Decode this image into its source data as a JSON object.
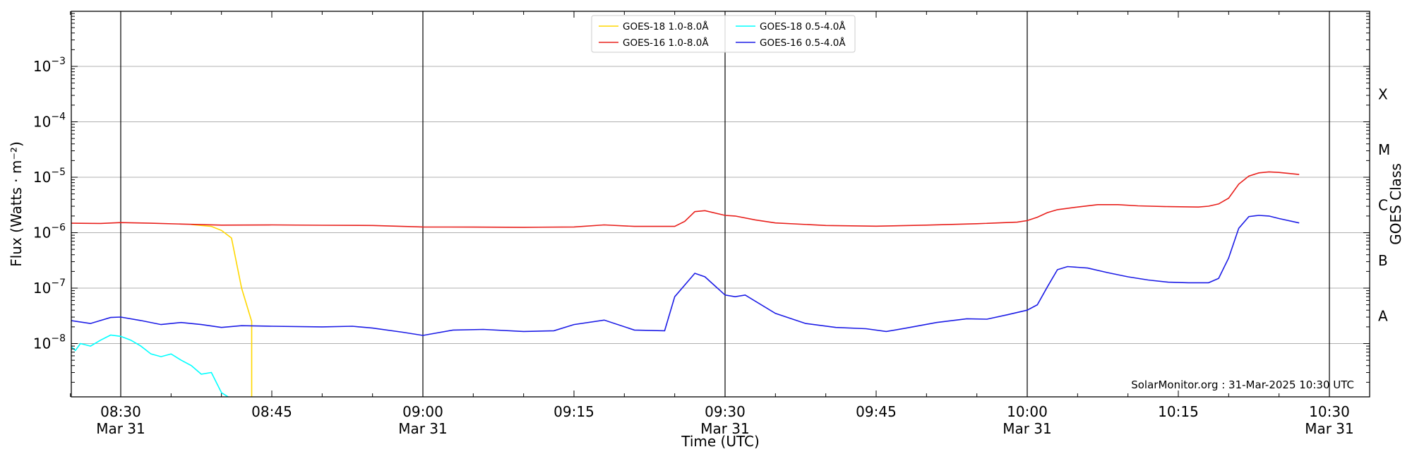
{
  "chart_data": {
    "type": "line",
    "title": "",
    "xlabel": "Time (UTC)",
    "ylabel": "Flux (Watts · m⁻²)",
    "y2label": "GOES Class",
    "yscale": "log",
    "ylim": [
      1e-09,
      0.01
    ],
    "xlim": [
      "08:25",
      "10:33"
    ],
    "grid": "horizontal at decades",
    "legend_position": "upper center",
    "credit": "SolarMonitor.org : 31-Mar-2025 10:30 UTC",
    "y_ticks": [
      {
        "value": 1e-08,
        "base": "10",
        "exp": "−8"
      },
      {
        "value": 1e-07,
        "base": "10",
        "exp": "−7"
      },
      {
        "value": 1e-06,
        "base": "10",
        "exp": "−6"
      },
      {
        "value": 1e-05,
        "base": "10",
        "exp": "−5"
      },
      {
        "value": 0.0001,
        "base": "10",
        "exp": "−4"
      },
      {
        "value": 0.001,
        "base": "10",
        "exp": "−3"
      }
    ],
    "x_ticks": [
      {
        "time": "08:30",
        "label": "08:30",
        "sublabel": "Mar 31"
      },
      {
        "time": "08:45",
        "label": "08:45",
        "sublabel": ""
      },
      {
        "time": "09:00",
        "label": "09:00",
        "sublabel": "Mar 31"
      },
      {
        "time": "09:15",
        "label": "09:15",
        "sublabel": ""
      },
      {
        "time": "09:30",
        "label": "09:30",
        "sublabel": "Mar 31"
      },
      {
        "time": "09:45",
        "label": "09:45",
        "sublabel": ""
      },
      {
        "time": "10:00",
        "label": "10:00",
        "sublabel": "Mar 31"
      },
      {
        "time": "10:15",
        "label": "10:15",
        "sublabel": ""
      },
      {
        "time": "10:30",
        "label": "10:30",
        "sublabel": "Mar 31"
      }
    ],
    "vertical_lines": [
      "08:30",
      "09:00",
      "09:30",
      "10:00",
      "10:30"
    ],
    "goes_classes": [
      {
        "label": "A",
        "value": 3.16e-08
      },
      {
        "label": "B",
        "value": 3.16e-07
      },
      {
        "label": "C",
        "value": 3.16e-06
      },
      {
        "label": "M",
        "value": 3.16e-05
      },
      {
        "label": "X",
        "value": 0.000316
      }
    ],
    "series": [
      {
        "name": "GOES-18 1.0-8.0Å",
        "color": "#FFD700",
        "points": [
          [
            "08:37",
            1.4e-06
          ],
          [
            "08:39",
            1.3e-06
          ],
          [
            "08:40",
            1.1e-06
          ],
          [
            "08:41",
            8e-07
          ],
          [
            "08:42",
            1e-07
          ],
          [
            "08:43",
            2.5e-08
          ],
          [
            "08:43",
            1e-09
          ]
        ]
      },
      {
        "name": "GOES-16 1.0-8.0Å",
        "color": "#e8201c",
        "points": [
          [
            "08:25",
            1.48e-06
          ],
          [
            "08:28",
            1.47e-06
          ],
          [
            "08:30",
            1.52e-06
          ],
          [
            "08:33",
            1.48e-06
          ],
          [
            "08:36",
            1.43e-06
          ],
          [
            "08:40",
            1.37e-06
          ],
          [
            "08:45",
            1.38e-06
          ],
          [
            "08:50",
            1.36e-06
          ],
          [
            "08:55",
            1.35e-06
          ],
          [
            "09:00",
            1.27e-06
          ],
          [
            "09:05",
            1.26e-06
          ],
          [
            "09:10",
            1.25e-06
          ],
          [
            "09:15",
            1.27e-06
          ],
          [
            "09:18",
            1.38e-06
          ],
          [
            "09:21",
            1.3e-06
          ],
          [
            "09:25",
            1.3e-06
          ],
          [
            "09:26",
            1.6e-06
          ],
          [
            "09:27",
            2.4e-06
          ],
          [
            "09:28",
            2.5e-06
          ],
          [
            "09:30",
            2.05e-06
          ],
          [
            "09:31",
            2e-06
          ],
          [
            "09:33",
            1.7e-06
          ],
          [
            "09:35",
            1.5e-06
          ],
          [
            "09:40",
            1.35e-06
          ],
          [
            "09:45",
            1.31e-06
          ],
          [
            "09:50",
            1.37e-06
          ],
          [
            "09:55",
            1.45e-06
          ],
          [
            "09:59",
            1.55e-06
          ],
          [
            "10:00",
            1.65e-06
          ],
          [
            "10:01",
            1.9e-06
          ],
          [
            "10:02",
            2.3e-06
          ],
          [
            "10:03",
            2.6e-06
          ],
          [
            "10:05",
            2.9e-06
          ],
          [
            "10:07",
            3.2e-06
          ],
          [
            "10:09",
            3.2e-06
          ],
          [
            "10:11",
            3.05e-06
          ],
          [
            "10:14",
            2.95e-06
          ],
          [
            "10:17",
            2.9e-06
          ],
          [
            "10:18",
            3e-06
          ],
          [
            "10:19",
            3.3e-06
          ],
          [
            "10:20",
            4.2e-06
          ],
          [
            "10:21",
            7.5e-06
          ],
          [
            "10:22",
            1.05e-05
          ],
          [
            "10:23",
            1.2e-05
          ],
          [
            "10:24",
            1.25e-05
          ],
          [
            "10:25",
            1.22e-05
          ],
          [
            "10:27",
            1.12e-05
          ]
        ]
      },
      {
        "name": "GOES-18 0.5-4.0Å",
        "color": "#00FFFF",
        "points": [
          [
            "08:25",
            9e-09
          ],
          [
            "08:25.5",
            7.5e-09
          ],
          [
            "08:26",
            1e-08
          ],
          [
            "08:27",
            9e-09
          ],
          [
            "08:28",
            1.15e-08
          ],
          [
            "08:29",
            1.42e-08
          ],
          [
            "08:30",
            1.35e-08
          ],
          [
            "08:31",
            1.15e-08
          ],
          [
            "08:32",
            9e-09
          ],
          [
            "08:33",
            6.5e-09
          ],
          [
            "08:34",
            5.8e-09
          ],
          [
            "08:35",
            6.5e-09
          ],
          [
            "08:36",
            5e-09
          ],
          [
            "08:37",
            4e-09
          ],
          [
            "08:38",
            2.8e-09
          ],
          [
            "08:39",
            3e-09
          ],
          [
            "08:40",
            1.3e-09
          ],
          [
            "08:41",
            1e-09
          ]
        ]
      },
      {
        "name": "GOES-16 0.5-4.0Å",
        "color": "#1c1ce6",
        "points": [
          [
            "08:25",
            2.6e-08
          ],
          [
            "08:27",
            2.3e-08
          ],
          [
            "08:29",
            2.95e-08
          ],
          [
            "08:30",
            3e-08
          ],
          [
            "08:32",
            2.6e-08
          ],
          [
            "08:34",
            2.2e-08
          ],
          [
            "08:36",
            2.4e-08
          ],
          [
            "08:38",
            2.2e-08
          ],
          [
            "08:40",
            1.95e-08
          ],
          [
            "08:42",
            2.1e-08
          ],
          [
            "08:45",
            2.05e-08
          ],
          [
            "08:50",
            2e-08
          ],
          [
            "08:53",
            2.05e-08
          ],
          [
            "08:55",
            1.9e-08
          ],
          [
            "08:58",
            1.6e-08
          ],
          [
            "09:00",
            1.4e-08
          ],
          [
            "09:03",
            1.75e-08
          ],
          [
            "09:06",
            1.8e-08
          ],
          [
            "09:10",
            1.65e-08
          ],
          [
            "09:13",
            1.7e-08
          ],
          [
            "09:15",
            2.2e-08
          ],
          [
            "09:18",
            2.65e-08
          ],
          [
            "09:21",
            1.75e-08
          ],
          [
            "09:24",
            1.7e-08
          ],
          [
            "09:25",
            7e-08
          ],
          [
            "09:27",
            1.85e-07
          ],
          [
            "09:28",
            1.6e-07
          ],
          [
            "09:30",
            7.5e-08
          ],
          [
            "09:31",
            7e-08
          ],
          [
            "09:32",
            7.5e-08
          ],
          [
            "09:35",
            3.5e-08
          ],
          [
            "09:38",
            2.3e-08
          ],
          [
            "09:41",
            1.95e-08
          ],
          [
            "09:44",
            1.85e-08
          ],
          [
            "09:46",
            1.65e-08
          ],
          [
            "09:48",
            1.9e-08
          ],
          [
            "09:51",
            2.4e-08
          ],
          [
            "09:54",
            2.8e-08
          ],
          [
            "09:56",
            2.75e-08
          ],
          [
            "09:58",
            3.3e-08
          ],
          [
            "10:00",
            4e-08
          ],
          [
            "10:01",
            5e-08
          ],
          [
            "10:02",
            1.05e-07
          ],
          [
            "10:03",
            2.15e-07
          ],
          [
            "10:04",
            2.45e-07
          ],
          [
            "10:06",
            2.3e-07
          ],
          [
            "10:08",
            1.9e-07
          ],
          [
            "10:10",
            1.6e-07
          ],
          [
            "10:12",
            1.4e-07
          ],
          [
            "10:14",
            1.28e-07
          ],
          [
            "10:16",
            1.25e-07
          ],
          [
            "10:18",
            1.25e-07
          ],
          [
            "10:19",
            1.5e-07
          ],
          [
            "10:20",
            3.5e-07
          ],
          [
            "10:21",
            1.2e-06
          ],
          [
            "10:22",
            1.95e-06
          ],
          [
            "10:23",
            2.05e-06
          ],
          [
            "10:24",
            2e-06
          ],
          [
            "10:25",
            1.8e-06
          ],
          [
            "10:27",
            1.5e-06
          ]
        ]
      }
    ]
  }
}
